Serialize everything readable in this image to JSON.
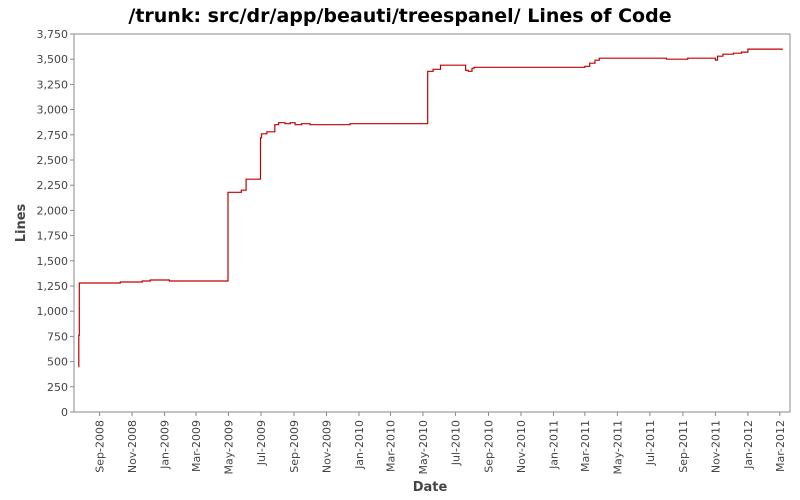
{
  "chart_data": {
    "type": "line",
    "title": "/trunk: src/dr/app/beauti/treespanel/ Lines of Code",
    "xlabel": "Date",
    "ylabel": "Lines",
    "x_range": [
      "2008-07-15",
      "2012-03-20"
    ],
    "ylim": [
      0,
      3750
    ],
    "y_ticks": [
      0,
      250,
      500,
      750,
      1000,
      1250,
      1500,
      1750,
      2000,
      2250,
      2500,
      2750,
      3000,
      3250,
      3500,
      3750
    ],
    "y_tick_labels": [
      "0",
      "250",
      "500",
      "750",
      "1,000",
      "1,250",
      "1,500",
      "1,750",
      "2,000",
      "2,250",
      "2,500",
      "2,750",
      "3,000",
      "3,250",
      "3,500",
      "3,750"
    ],
    "x_ticks": [
      "2008-09-01",
      "2008-11-01",
      "2009-01-01",
      "2009-03-01",
      "2009-05-01",
      "2009-07-01",
      "2009-09-01",
      "2009-11-01",
      "2010-01-01",
      "2010-03-01",
      "2010-05-01",
      "2010-07-01",
      "2010-09-01",
      "2010-11-01",
      "2011-01-01",
      "2011-03-01",
      "2011-05-01",
      "2011-07-01",
      "2011-09-01",
      "2011-11-01",
      "2012-01-01",
      "2012-03-01"
    ],
    "x_tick_labels": [
      "Sep-2008",
      "Nov-2008",
      "Jan-2009",
      "Mar-2009",
      "May-2009",
      "Jul-2009",
      "Sep-2009",
      "Nov-2009",
      "Jan-2010",
      "Mar-2010",
      "May-2010",
      "Jul-2010",
      "Sep-2010",
      "Nov-2010",
      "Jan-2011",
      "Mar-2011",
      "May-2011",
      "Jul-2011",
      "Sep-2011",
      "Nov-2011",
      "Jan-2012",
      "Mar-2012"
    ],
    "grid": false,
    "series": [
      {
        "color": "#c00000",
        "step": true,
        "points": [
          [
            "2008-07-23",
            450
          ],
          [
            "2008-07-24",
            760
          ],
          [
            "2008-07-25",
            1280
          ],
          [
            "2008-10-10",
            1290
          ],
          [
            "2008-11-20",
            1300
          ],
          [
            "2008-12-05",
            1310
          ],
          [
            "2009-01-10",
            1300
          ],
          [
            "2009-04-30",
            2180
          ],
          [
            "2009-05-25",
            2200
          ],
          [
            "2009-06-03",
            2310
          ],
          [
            "2009-06-30",
            2720
          ],
          [
            "2009-07-02",
            2760
          ],
          [
            "2009-07-12",
            2780
          ],
          [
            "2009-07-27",
            2850
          ],
          [
            "2009-08-03",
            2870
          ],
          [
            "2009-08-15",
            2860
          ],
          [
            "2009-08-25",
            2870
          ],
          [
            "2009-09-03",
            2850
          ],
          [
            "2009-09-15",
            2860
          ],
          [
            "2009-10-01",
            2850
          ],
          [
            "2009-12-15",
            2860
          ],
          [
            "2010-03-25",
            2860
          ],
          [
            "2010-05-10",
            3380
          ],
          [
            "2010-05-20",
            3400
          ],
          [
            "2010-06-03",
            3440
          ],
          [
            "2010-07-20",
            3390
          ],
          [
            "2010-07-25",
            3380
          ],
          [
            "2010-08-01",
            3410
          ],
          [
            "2010-08-05",
            3420
          ],
          [
            "2011-03-01",
            3430
          ],
          [
            "2011-03-10",
            3460
          ],
          [
            "2011-03-20",
            3490
          ],
          [
            "2011-03-28",
            3510
          ],
          [
            "2011-08-01",
            3500
          ],
          [
            "2011-09-10",
            3510
          ],
          [
            "2011-11-01",
            3490
          ],
          [
            "2011-11-05",
            3530
          ],
          [
            "2011-11-15",
            3550
          ],
          [
            "2011-12-05",
            3560
          ],
          [
            "2011-12-20",
            3570
          ],
          [
            "2012-01-01",
            3600
          ],
          [
            "2012-03-05",
            3590
          ]
        ]
      }
    ]
  }
}
